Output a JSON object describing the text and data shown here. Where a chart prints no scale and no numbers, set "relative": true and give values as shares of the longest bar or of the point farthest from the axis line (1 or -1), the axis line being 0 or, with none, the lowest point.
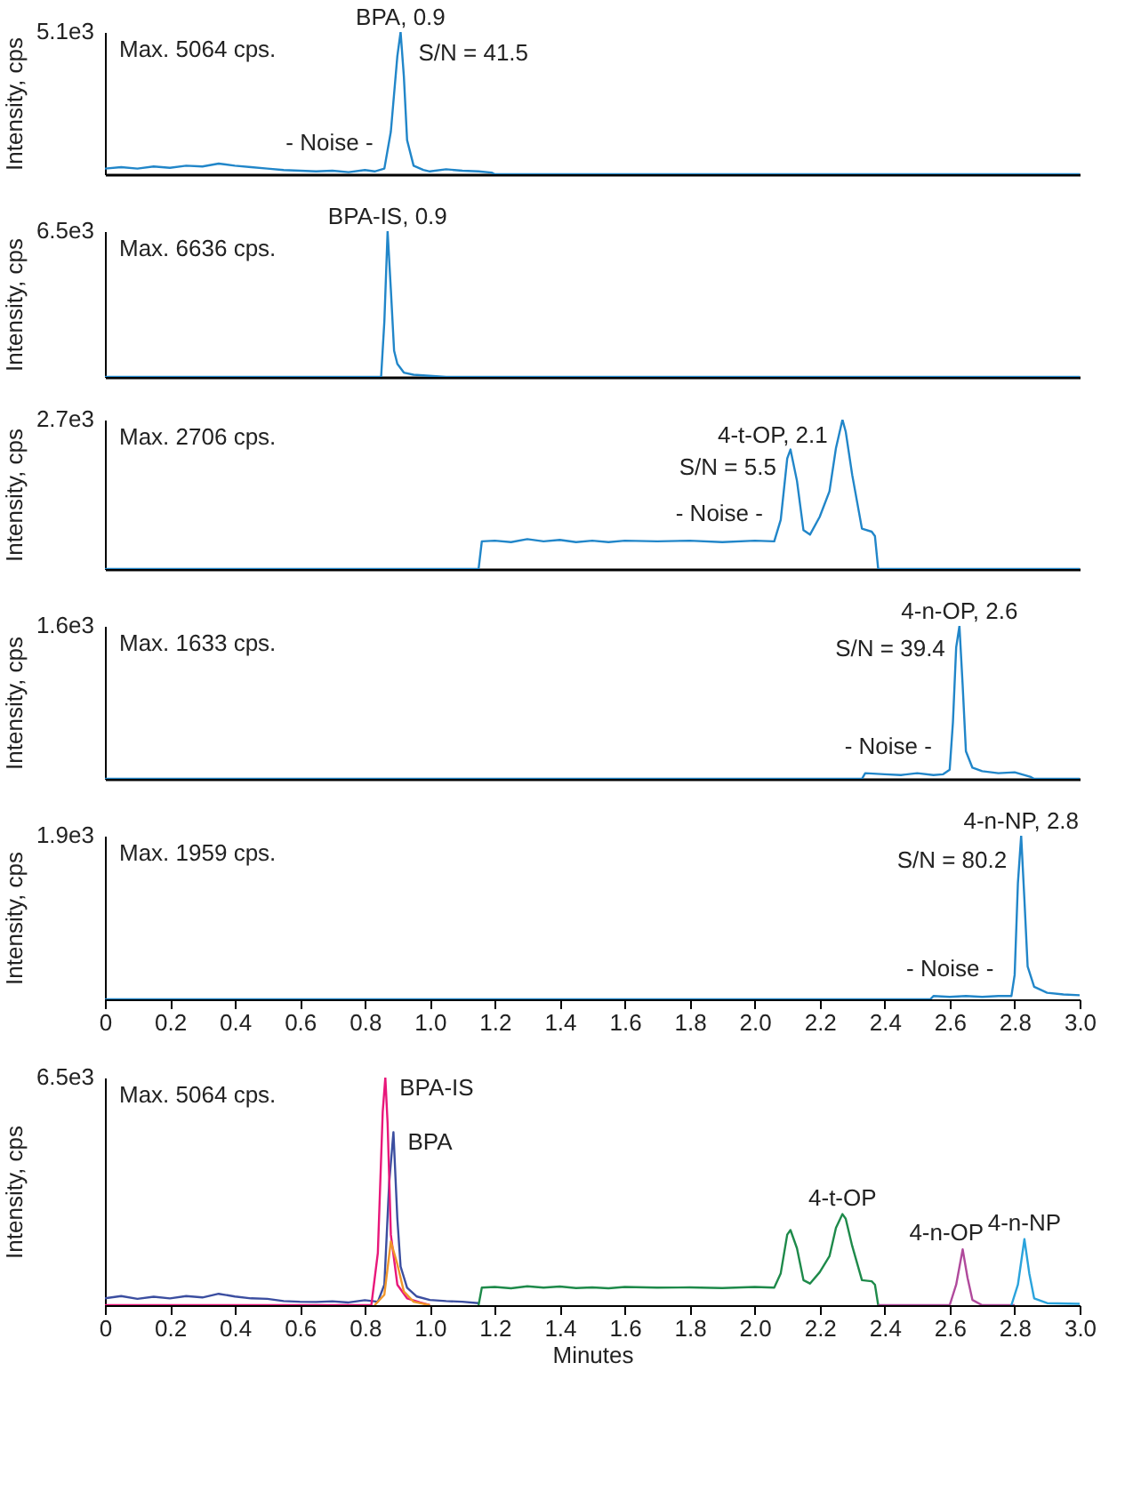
{
  "chart_data": [
    {
      "type": "line",
      "relative": true,
      "ylabel": "Intensity, cps",
      "xlim": [
        0,
        3.0
      ],
      "tick_labels": "y",
      "annotations": [
        "5.1e3",
        "Max. 5064 cps.",
        {
          "text": "BPA, 0.9",
          "x": 0.91,
          "y": 1
        },
        "S/N = 41.5",
        "- Noise -"
      ],
      "series": [
        {
          "color": "#2186c9",
          "x": [
            0,
            0.05,
            0.1,
            0.15,
            0.2,
            0.25,
            0.3,
            0.35,
            0.4,
            0.45,
            0.5,
            0.55,
            0.6,
            0.65,
            0.7,
            0.75,
            0.8,
            0.83,
            0.86,
            0.88,
            0.9,
            0.91,
            0.92,
            0.93,
            0.95,
            0.98,
            1.0,
            1.05,
            1.1,
            1.15,
            1.19,
            1.2,
            3.0
          ],
          "values": [
            0.04,
            0.05,
            0.04,
            0.055,
            0.045,
            0.06,
            0.055,
            0.075,
            0.06,
            0.05,
            0.04,
            0.03,
            0.025,
            0.02,
            0.025,
            0.015,
            0.03,
            0.02,
            0.04,
            0.3,
            0.83,
            1,
            0.69,
            0.24,
            0.06,
            0.03,
            0.02,
            0.035,
            0.025,
            0.02,
            0.012,
            0,
            0
          ]
        }
      ]
    },
    {
      "type": "line",
      "relative": true,
      "ylabel": "Intensity, cps",
      "xlim": [
        0,
        3.0
      ],
      "tick_labels": "y",
      "annotations": [
        "6.5e3",
        "Max. 6636 cps.",
        {
          "text": "BPA-IS, 0.9",
          "x": 0.87,
          "y": 1
        }
      ],
      "series": [
        {
          "color": "#2186c9",
          "x": [
            0,
            0.85,
            0.86,
            0.87,
            0.88,
            0.89,
            0.9,
            0.92,
            0.95,
            1.0,
            1.05,
            3.0
          ],
          "values": [
            0,
            0,
            0.38,
            1,
            0.6,
            0.18,
            0.09,
            0.03,
            0.015,
            0.008,
            0,
            0
          ]
        }
      ]
    },
    {
      "type": "line",
      "relative": true,
      "ylabel": "Intensity, cps",
      "xlim": [
        0,
        3.0
      ],
      "tick_labels": "y",
      "annotations": [
        "2.7e3",
        "Max. 2706 cps.",
        {
          "text": "4-t-OP, 2.1",
          "x": 2.11,
          "y": 0.8
        },
        "S/N = 5.5",
        "- Noise -"
      ],
      "series": [
        {
          "color": "#2186c9",
          "x": [
            0,
            1.15,
            1.16,
            1.2,
            1.25,
            1.3,
            1.35,
            1.4,
            1.45,
            1.5,
            1.55,
            1.6,
            1.7,
            1.8,
            1.9,
            2.0,
            2.06,
            2.08,
            2.1,
            2.11,
            2.13,
            2.15,
            2.17,
            2.2,
            2.23,
            2.25,
            2.27,
            2.28,
            2.3,
            2.33,
            2.36,
            2.37,
            2.38,
            3.0
          ],
          "values": [
            0,
            0,
            0.185,
            0.19,
            0.18,
            0.2,
            0.185,
            0.195,
            0.18,
            0.19,
            0.18,
            0.19,
            0.185,
            0.19,
            0.18,
            0.19,
            0.185,
            0.33,
            0.74,
            0.8,
            0.59,
            0.26,
            0.23,
            0.35,
            0.52,
            0.81,
            1,
            0.92,
            0.63,
            0.27,
            0.25,
            0.22,
            0,
            0
          ]
        }
      ]
    },
    {
      "type": "line",
      "relative": true,
      "ylabel": "Intensity, cps",
      "xlim": [
        0,
        3.0
      ],
      "tick_labels": "y",
      "annotations": [
        "1.6e3",
        "Max. 1633 cps.",
        {
          "text": "4-n-OP, 2.6",
          "x": 2.63,
          "y": 1
        },
        "S/N = 39.4",
        "- Noise -"
      ],
      "series": [
        {
          "color": "#2186c9",
          "x": [
            0,
            2.33,
            2.34,
            2.4,
            2.45,
            2.5,
            2.55,
            2.58,
            2.6,
            2.61,
            2.62,
            2.63,
            2.64,
            2.65,
            2.67,
            2.7,
            2.75,
            2.8,
            2.85,
            2.86,
            3.0
          ],
          "values": [
            0,
            0,
            0.037,
            0.03,
            0.025,
            0.037,
            0.025,
            0.03,
            0.06,
            0.37,
            0.86,
            1,
            0.61,
            0.18,
            0.073,
            0.05,
            0.037,
            0.043,
            0.012,
            0,
            0
          ]
        }
      ]
    },
    {
      "type": "line",
      "relative": true,
      "ylabel": "Intensity, cps",
      "xlim": [
        0,
        3.0
      ],
      "xticks": [
        0,
        0.2,
        0.4,
        0.6,
        0.8,
        {
          "value": 1,
          "label": "1.0"
        },
        1.2,
        1.4,
        1.6,
        1.8,
        {
          "value": 2,
          "label": "2.0"
        },
        2.2,
        2.4,
        2.6,
        2.8,
        {
          "value": 3,
          "label": "3.0"
        }
      ],
      "annotations": [
        "1.9e3",
        "Max. 1959 cps.",
        {
          "text": "4-n-NP, 2.8",
          "x": 2.82,
          "y": 1
        },
        "S/N = 80.2",
        "- Noise -"
      ],
      "series": [
        {
          "color": "#2186c9",
          "x": [
            0,
            2.54,
            2.55,
            2.6,
            2.65,
            2.7,
            2.75,
            2.79,
            2.8,
            2.81,
            2.82,
            2.83,
            2.84,
            2.86,
            2.9,
            2.95,
            3.0
          ],
          "values": [
            0,
            0,
            0.02,
            0.015,
            0.02,
            0.015,
            0.02,
            0.02,
            0.15,
            0.71,
            1,
            0.61,
            0.2,
            0.077,
            0.04,
            0.03,
            0.025
          ]
        }
      ]
    },
    {
      "type": "line",
      "relative": true,
      "ylabel": "Intensity, cps",
      "xlabel": "Minutes",
      "xlim": [
        0,
        3.0
      ],
      "xticks": [
        0,
        0.2,
        0.4,
        0.6,
        0.8,
        {
          "value": 1,
          "label": "1.0"
        },
        1.2,
        1.4,
        1.6,
        1.8,
        {
          "value": 2,
          "label": "2.0"
        },
        2.2,
        2.4,
        2.6,
        2.8,
        {
          "value": 3,
          "label": "3.0"
        }
      ],
      "annotations": [
        "6.5e3",
        "Max. 5064 cps."
      ],
      "series": [
        {
          "name": "BPA",
          "color": "#3b4ea0",
          "x": [
            0,
            0.05,
            0.1,
            0.15,
            0.2,
            0.25,
            0.3,
            0.35,
            0.4,
            0.45,
            0.5,
            0.55,
            0.6,
            0.65,
            0.7,
            0.75,
            0.8,
            0.84,
            0.86,
            0.875,
            0.888,
            0.9,
            0.91,
            0.93,
            0.96,
            1.0,
            1.05,
            1.1,
            1.15
          ],
          "values": [
            0.03,
            0.04,
            0.028,
            0.037,
            0.03,
            0.04,
            0.034,
            0.05,
            0.038,
            0.03,
            0.028,
            0.018,
            0.015,
            0.014,
            0.017,
            0.012,
            0.022,
            0.015,
            0.09,
            0.54,
            0.76,
            0.38,
            0.17,
            0.077,
            0.038,
            0.023,
            0.018,
            0.015,
            0.009
          ]
        },
        {
          "name": "BPA-IS",
          "color": "#e8177a",
          "x": [
            0,
            0.82,
            0.84,
            0.855,
            0.863,
            0.87,
            0.88,
            0.9,
            0.93,
            0.97,
            1.0
          ],
          "values": [
            0,
            0,
            0.23,
            0.85,
            1,
            0.8,
            0.31,
            0.09,
            0.03,
            0.012,
            0
          ]
        },
        {
          "color": "#f0962a",
          "x": [
            0.83,
            0.86,
            0.88,
            0.9,
            0.92,
            0.95,
            1.0
          ],
          "values": [
            0,
            0.046,
            0.28,
            0.18,
            0.06,
            0.015,
            0
          ]
        },
        {
          "name": "4-t-OP",
          "color": "#1e8a4a",
          "x": [
            1.15,
            1.16,
            1.2,
            1.25,
            1.3,
            1.35,
            1.4,
            1.45,
            1.5,
            1.55,
            1.6,
            1.7,
            1.8,
            1.9,
            2.0,
            2.06,
            2.08,
            2.1,
            2.11,
            2.13,
            2.15,
            2.17,
            2.2,
            2.23,
            2.25,
            2.27,
            2.28,
            2.3,
            2.33,
            2.36,
            2.37,
            2.38
          ],
          "values": [
            0,
            0.077,
            0.08,
            0.074,
            0.083,
            0.077,
            0.082,
            0.075,
            0.078,
            0.074,
            0.08,
            0.077,
            0.078,
            0.075,
            0.08,
            0.077,
            0.14,
            0.31,
            0.33,
            0.25,
            0.11,
            0.095,
            0.145,
            0.215,
            0.34,
            0.4,
            0.38,
            0.26,
            0.11,
            0.105,
            0.09,
            0
          ]
        },
        {
          "name": "4-n-OP",
          "color": "#b04a9c",
          "x": [
            2.38,
            2.6,
            2.62,
            2.64,
            2.655,
            2.67,
            2.7,
            2.8
          ],
          "values": [
            0,
            0,
            0.09,
            0.245,
            0.12,
            0.023,
            0,
            0
          ]
        },
        {
          "name": "4-n-NP",
          "color": "#2aa3dc",
          "x": [
            2.79,
            2.81,
            2.83,
            2.845,
            2.86,
            2.9,
            3.0
          ],
          "values": [
            0,
            0.09,
            0.29,
            0.14,
            0.03,
            0.009,
            0.006
          ]
        }
      ]
    }
  ]
}
